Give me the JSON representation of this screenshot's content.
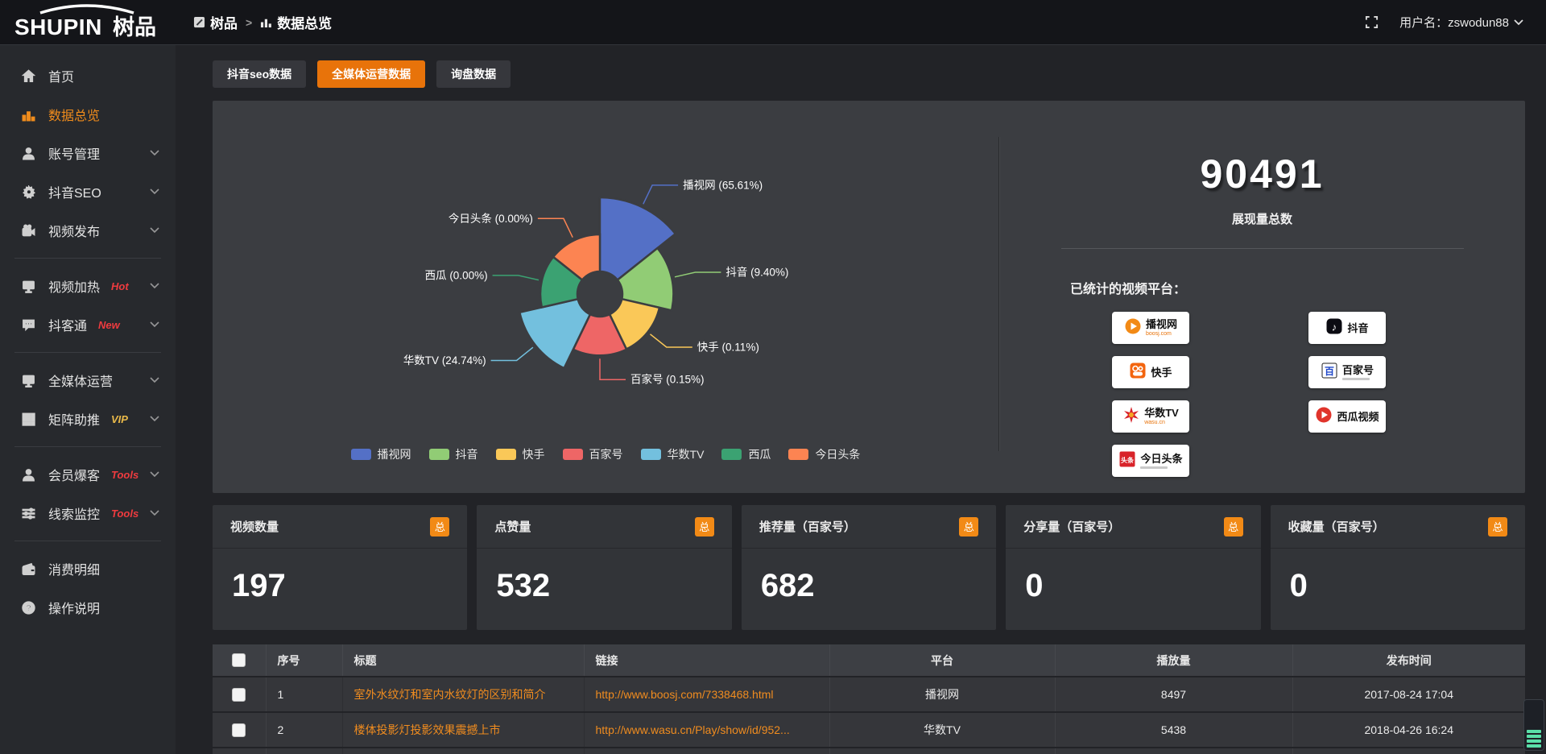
{
  "header": {
    "logo_latin": "SHUPIN",
    "logo_cn": "树品",
    "breadcrumb": {
      "app": "树品",
      "separator": ">",
      "page": "数据总览"
    },
    "username": "用户名：zswodun88"
  },
  "sidebar": {
    "items": [
      {
        "icon": "home-icon",
        "label": "首页"
      },
      {
        "icon": "bar-chart-icon",
        "label": "数据总览",
        "active": true
      },
      {
        "icon": "user-icon",
        "label": "账号管理",
        "chevron": true
      },
      {
        "icon": "gear-icon",
        "label": "抖音SEO",
        "chevron": true
      },
      {
        "icon": "video-publish-icon",
        "label": "视频发布",
        "chevron": true
      },
      {
        "divider": true
      },
      {
        "icon": "monitor-heat-icon",
        "label": "视频加热",
        "badge": "Hot",
        "badge_color": "#ef3b3f",
        "chevron": true
      },
      {
        "icon": "chat-icon",
        "label": "抖客通",
        "badge": "New",
        "badge_color": "#ef3b3f",
        "chevron": true
      },
      {
        "divider": true
      },
      {
        "icon": "monitor-icon",
        "label": "全媒体运营",
        "chevron": true
      },
      {
        "icon": "grid-icon",
        "label": "矩阵助推",
        "badge": "VIP",
        "badge_color": "#e9b949",
        "chevron": true
      },
      {
        "divider": true
      },
      {
        "icon": "member-icon",
        "label": "会员爆客",
        "badge": "Tools",
        "badge_color": "#ef3b3f",
        "chevron": true
      },
      {
        "icon": "sliders-icon",
        "label": "线索监控",
        "badge": "Tools",
        "badge_color": "#ef3b3f",
        "chevron": true
      },
      {
        "divider": true
      },
      {
        "icon": "wallet-icon",
        "label": "消费明细"
      },
      {
        "icon": "help-icon",
        "label": "操作说明"
      }
    ]
  },
  "tabs": [
    {
      "label": "抖音seo数据",
      "active": false
    },
    {
      "label": "全媒体运营数据",
      "active": true
    },
    {
      "label": "询盘数据",
      "active": false
    }
  ],
  "chart_data": {
    "type": "pie",
    "subtype": "nightingale-rose",
    "items": [
      {
        "name": "播视网",
        "pct": 65.61,
        "color": "#5470c6"
      },
      {
        "name": "抖音",
        "pct": 9.4,
        "color": "#91cc75"
      },
      {
        "name": "快手",
        "pct": 0.11,
        "color": "#fac858"
      },
      {
        "name": "百家号",
        "pct": 0.15,
        "color": "#ee6666"
      },
      {
        "name": "华数TV",
        "pct": 24.74,
        "color": "#73c0de"
      },
      {
        "name": "西瓜",
        "pct": 0.0,
        "color": "#3ba272"
      },
      {
        "name": "今日头条",
        "pct": 0.0,
        "color": "#fc8452"
      }
    ],
    "label_format": "{name} ({pct}%)",
    "legend_position": "bottom",
    "legend": [
      "播视网",
      "抖音",
      "快手",
      "百家号",
      "华数TV",
      "西瓜",
      "今日头条"
    ]
  },
  "summary": {
    "value": "90491",
    "value_label": "展现量总数",
    "platforms_title": "已统计的视频平台：",
    "badge_columns": [
      [
        {
          "icon": "boosj-icon",
          "name": "播视网",
          "sub": "boosj.com"
        },
        {
          "icon": "kuaishou-icon",
          "name": "快手"
        },
        {
          "icon": "wasu-icon",
          "name": "华数TV",
          "sub": "wasu.cn"
        },
        {
          "icon": "toutiao-icon",
          "name": "今日头条",
          "subline": true
        }
      ],
      [
        {
          "icon": "douyin-icon",
          "name": "抖音"
        },
        {
          "icon": "baijiahao-icon",
          "name": "百家号",
          "subline": true
        },
        {
          "icon": "xigua-icon",
          "name": "西瓜视频"
        }
      ]
    ]
  },
  "stat_cards": [
    {
      "title": "视频数量",
      "badge": "总",
      "value": "197"
    },
    {
      "title": "点赞量",
      "badge": "总",
      "value": "532"
    },
    {
      "title": "推荐量（百家号）",
      "badge": "总",
      "value": "682"
    },
    {
      "title": "分享量（百家号）",
      "badge": "总",
      "value": "0"
    },
    {
      "title": "收藏量（百家号）",
      "badge": "总",
      "value": "0"
    }
  ],
  "table": {
    "headers": [
      "序号",
      "标题",
      "链接",
      "平台",
      "播放量",
      "发布时间"
    ],
    "rows": [
      {
        "index": "1",
        "title": "室外水纹灯和室内水纹灯的区别和简介",
        "link": "http://www.boosj.com/7338468.html",
        "platform": "播视网",
        "views": "8497",
        "time": "2017-08-24 17:04"
      },
      {
        "index": "2",
        "title": "楼体投影灯投影效果震撼上市",
        "link": "http://www.wasu.cn/Play/show/id/952...",
        "platform": "华数TV",
        "views": "5438",
        "time": "2018-04-26 16:24"
      }
    ],
    "has_partial_next_row": true
  }
}
